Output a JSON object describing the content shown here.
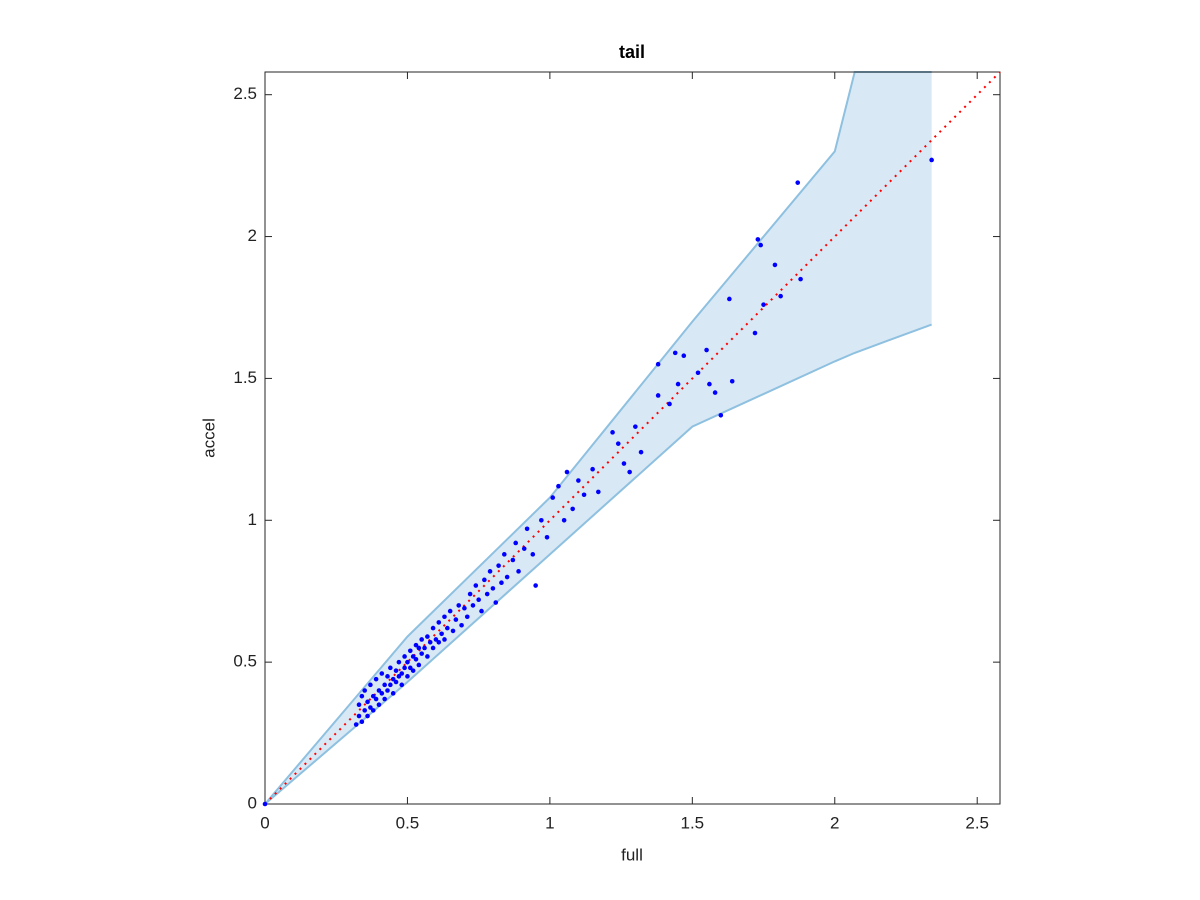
{
  "chart_data": {
    "type": "scatter",
    "title": "tail",
    "xlabel": "full",
    "ylabel": "accel",
    "xlim": [
      0,
      2.58
    ],
    "ylim": [
      0,
      2.58
    ],
    "xticks": [
      0,
      0.5,
      1,
      1.5,
      2,
      2.5
    ],
    "yticks": [
      0,
      0.5,
      1,
      1.5,
      2,
      2.5
    ],
    "band": {
      "x": [
        0,
        0.5,
        1,
        1.5,
        2,
        2.07,
        2.34
      ],
      "upper": [
        0,
        0.59,
        1.08,
        1.7,
        2.3,
        2.58,
        2.58
      ],
      "lower": [
        0,
        0.43,
        0.88,
        1.33,
        1.56,
        1.59,
        1.69
      ],
      "color": "#d9e8f5",
      "edge_color": "#8ec0e0"
    },
    "reference_line": {
      "x": [
        0,
        2.58
      ],
      "values": [
        0,
        2.58
      ],
      "color": "#ff0000"
    },
    "series": [
      {
        "color": "#0000ff",
        "x": [
          0,
          0.32,
          0.33,
          0.33,
          0.34,
          0.34,
          0.35,
          0.35,
          0.36,
          0.36,
          0.37,
          0.37,
          0.38,
          0.38,
          0.39,
          0.39,
          0.4,
          0.4,
          0.41,
          0.41,
          0.42,
          0.42,
          0.43,
          0.43,
          0.44,
          0.44,
          0.45,
          0.45,
          0.46,
          0.46,
          0.47,
          0.47,
          0.48,
          0.48,
          0.49,
          0.49,
          0.5,
          0.5,
          0.51,
          0.51,
          0.52,
          0.52,
          0.53,
          0.53,
          0.54,
          0.54,
          0.55,
          0.55,
          0.56,
          0.57,
          0.57,
          0.58,
          0.59,
          0.59,
          0.6,
          0.61,
          0.61,
          0.62,
          0.63,
          0.63,
          0.64,
          0.65,
          0.66,
          0.67,
          0.68,
          0.69,
          0.7,
          0.71,
          0.72,
          0.73,
          0.74,
          0.75,
          0.76,
          0.77,
          0.78,
          0.79,
          0.8,
          0.81,
          0.82,
          0.83,
          0.84,
          0.85,
          0.87,
          0.88,
          0.89,
          0.91,
          0.92,
          0.94,
          0.95,
          0.97,
          0.99,
          1.01,
          1.03,
          1.05,
          1.06,
          1.08,
          1.1,
          1.12,
          1.15,
          1.17,
          1.22,
          1.24,
          1.26,
          1.28,
          1.3,
          1.32,
          1.38,
          1.38,
          1.42,
          1.44,
          1.45,
          1.47,
          1.52,
          1.55,
          1.56,
          1.58,
          1.6,
          1.63,
          1.64,
          1.72,
          1.73,
          1.74,
          1.75,
          1.79,
          1.81,
          1.87,
          1.88,
          2.34
        ],
        "values": [
          0,
          0.28,
          0.35,
          0.31,
          0.38,
          0.29,
          0.33,
          0.4,
          0.36,
          0.31,
          0.42,
          0.34,
          0.38,
          0.33,
          0.44,
          0.37,
          0.4,
          0.35,
          0.46,
          0.39,
          0.42,
          0.37,
          0.45,
          0.4,
          0.48,
          0.42,
          0.44,
          0.39,
          0.47,
          0.43,
          0.5,
          0.45,
          0.46,
          0.42,
          0.52,
          0.48,
          0.5,
          0.45,
          0.54,
          0.48,
          0.52,
          0.47,
          0.56,
          0.51,
          0.55,
          0.49,
          0.58,
          0.53,
          0.55,
          0.59,
          0.52,
          0.57,
          0.62,
          0.55,
          0.58,
          0.64,
          0.57,
          0.6,
          0.66,
          0.58,
          0.62,
          0.68,
          0.61,
          0.65,
          0.7,
          0.63,
          0.69,
          0.66,
          0.74,
          0.7,
          0.77,
          0.72,
          0.68,
          0.79,
          0.74,
          0.82,
          0.76,
          0.71,
          0.84,
          0.78,
          0.88,
          0.8,
          0.86,
          0.92,
          0.82,
          0.9,
          0.97,
          0.88,
          0.77,
          1.0,
          0.94,
          1.08,
          1.12,
          1.0,
          1.17,
          1.04,
          1.14,
          1.09,
          1.18,
          1.1,
          1.31,
          1.27,
          1.2,
          1.17,
          1.33,
          1.24,
          1.44,
          1.55,
          1.41,
          1.59,
          1.48,
          1.58,
          1.52,
          1.6,
          1.48,
          1.45,
          1.37,
          1.78,
          1.49,
          1.66,
          1.99,
          1.97,
          1.76,
          1.9,
          1.79,
          2.19,
          1.85,
          2.27
        ]
      }
    ]
  }
}
